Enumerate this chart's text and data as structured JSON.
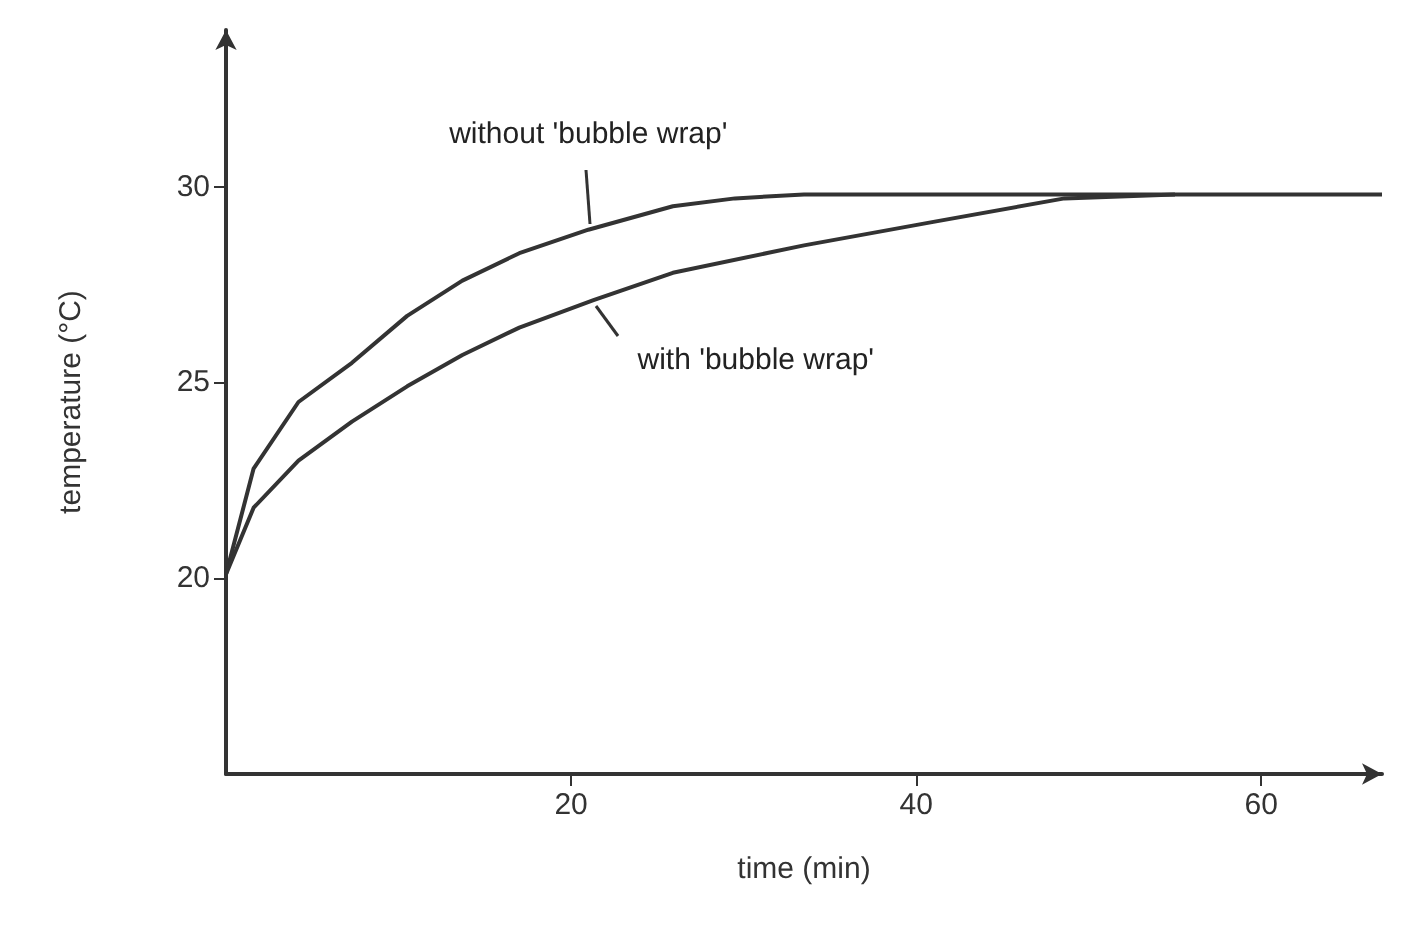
{
  "chart_data": {
    "type": "line",
    "xlabel": "time (min)",
    "ylabel": "temperature (°C)",
    "xlim": [
      0,
      67
    ],
    "ylim": [
      15,
      34
    ],
    "xticks": [
      20,
      40,
      60
    ],
    "yticks": [
      20,
      25,
      30
    ],
    "grid": false,
    "legend": false,
    "marker": "none",
    "line_style": "solid",
    "series": [
      {
        "name": "without 'bubble wrap'",
        "color": "#333333",
        "x": [
          0,
          1.6,
          4.2,
          7.3,
          10.5,
          13.7,
          17,
          21,
          25.9,
          29.5,
          33.5,
          40,
          50,
          60,
          67
        ],
        "values": [
          20.1,
          22.8,
          24.5,
          25.5,
          26.7,
          27.6,
          28.3,
          28.9,
          29.5,
          29.7,
          29.8,
          29.8,
          29.8,
          29.8,
          29.8
        ]
      },
      {
        "name": "with 'bubble wrap'",
        "color": "#333333",
        "x": [
          0,
          1.6,
          4.2,
          7.3,
          10.5,
          13.7,
          17,
          21.3,
          25.9,
          33.5,
          41,
          48.6,
          55
        ],
        "values": [
          20.1,
          21.8,
          23,
          24,
          24.9,
          25.7,
          26.4,
          27.1,
          27.8,
          28.5,
          29.1,
          29.7,
          29.8
        ]
      }
    ]
  }
}
